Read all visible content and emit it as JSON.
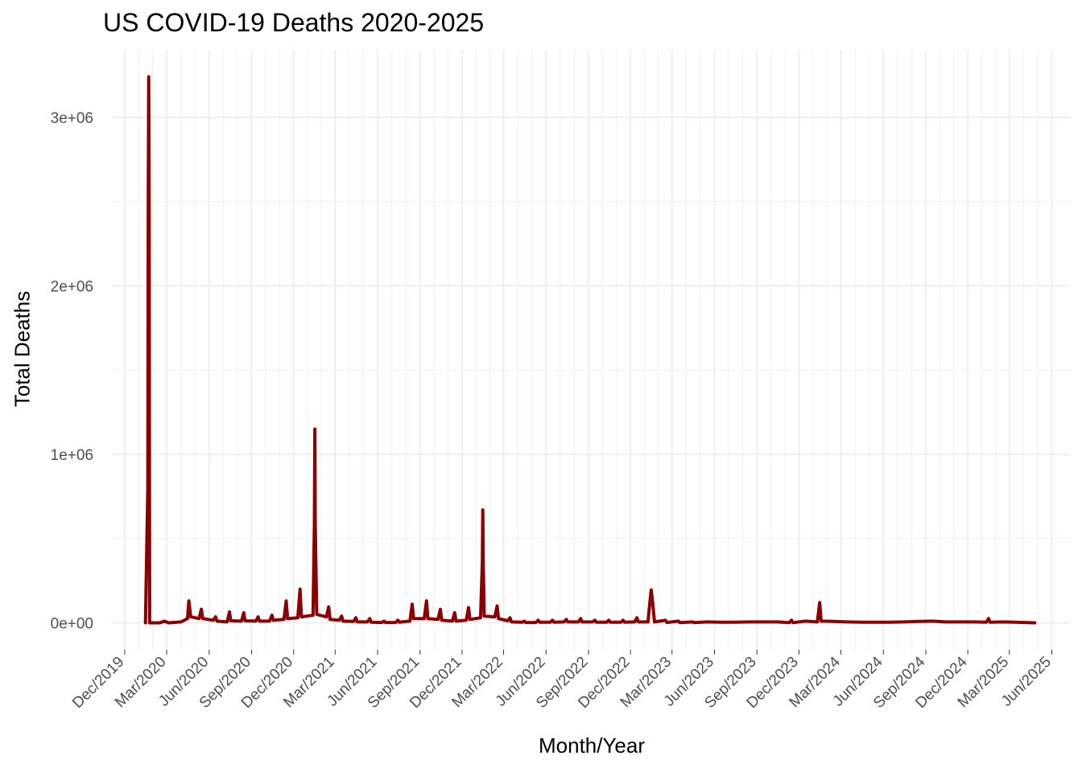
{
  "chart_data": {
    "type": "line",
    "title": "US COVID-19 Deaths 2020-2025",
    "xlabel": "Month/Year",
    "ylabel": "Total Deaths",
    "color": "#8b0000",
    "grid": true,
    "legend": "none",
    "x_range": [
      "2019-11-05",
      "2025-07-12"
    ],
    "ylim": [
      -160000,
      3400000
    ],
    "y_ticks": [
      {
        "value": 0,
        "label": "0e+00"
      },
      {
        "value": 1000000,
        "label": "1e+06"
      },
      {
        "value": 2000000,
        "label": "2e+06"
      },
      {
        "value": 3000000,
        "label": "3e+06"
      }
    ],
    "x_ticks": [
      {
        "date": "2019-12-01",
        "label": "Dec/2019"
      },
      {
        "date": "2020-03-01",
        "label": "Mar/2020"
      },
      {
        "date": "2020-06-01",
        "label": "Jun/2020"
      },
      {
        "date": "2020-09-01",
        "label": "Sep/2020"
      },
      {
        "date": "2020-12-01",
        "label": "Dec/2020"
      },
      {
        "date": "2021-03-01",
        "label": "Mar/2021"
      },
      {
        "date": "2021-06-01",
        "label": "Jun/2021"
      },
      {
        "date": "2021-09-01",
        "label": "Sep/2021"
      },
      {
        "date": "2021-12-01",
        "label": "Dec/2021"
      },
      {
        "date": "2022-03-01",
        "label": "Mar/2022"
      },
      {
        "date": "2022-06-01",
        "label": "Jun/2022"
      },
      {
        "date": "2022-09-01",
        "label": "Sep/2022"
      },
      {
        "date": "2022-12-01",
        "label": "Dec/2022"
      },
      {
        "date": "2023-03-01",
        "label": "Mar/2023"
      },
      {
        "date": "2023-06-01",
        "label": "Jun/2023"
      },
      {
        "date": "2023-09-01",
        "label": "Sep/2023"
      },
      {
        "date": "2023-12-01",
        "label": "Dec/2023"
      },
      {
        "date": "2024-03-01",
        "label": "Mar/2024"
      },
      {
        "date": "2024-06-01",
        "label": "Jun/2024"
      },
      {
        "date": "2024-09-01",
        "label": "Sep/2024"
      },
      {
        "date": "2024-12-01",
        "label": "Dec/2024"
      },
      {
        "date": "2025-03-01",
        "label": "Mar/2025"
      },
      {
        "date": "2025-06-01",
        "label": "Jun/2025"
      }
    ],
    "series": [
      {
        "points": [
          [
            "2020-01-15",
            0
          ],
          [
            "2020-01-20",
            800000
          ],
          [
            "2020-01-21",
            2420000
          ],
          [
            "2020-01-22",
            3240000
          ],
          [
            "2020-01-23",
            2420000
          ],
          [
            "2020-01-24",
            0
          ],
          [
            "2020-02-15",
            0
          ],
          [
            "2020-02-25",
            10000
          ],
          [
            "2020-03-05",
            0
          ],
          [
            "2020-04-01",
            5000
          ],
          [
            "2020-04-15",
            25000
          ],
          [
            "2020-04-18",
            130000
          ],
          [
            "2020-04-22",
            35000
          ],
          [
            "2020-05-10",
            25000
          ],
          [
            "2020-05-15",
            80000
          ],
          [
            "2020-05-18",
            25000
          ],
          [
            "2020-06-10",
            15000
          ],
          [
            "2020-06-15",
            35000
          ],
          [
            "2020-06-18",
            10000
          ],
          [
            "2020-07-10",
            5000
          ],
          [
            "2020-07-15",
            65000
          ],
          [
            "2020-07-18",
            12000
          ],
          [
            "2020-08-10",
            10000
          ],
          [
            "2020-08-15",
            60000
          ],
          [
            "2020-08-18",
            12000
          ],
          [
            "2020-09-10",
            10000
          ],
          [
            "2020-09-15",
            35000
          ],
          [
            "2020-09-18",
            10000
          ],
          [
            "2020-10-10",
            10000
          ],
          [
            "2020-10-15",
            45000
          ],
          [
            "2020-10-18",
            15000
          ],
          [
            "2020-11-10",
            20000
          ],
          [
            "2020-11-15",
            130000
          ],
          [
            "2020-11-18",
            25000
          ],
          [
            "2020-12-10",
            30000
          ],
          [
            "2020-12-15",
            200000
          ],
          [
            "2020-12-18",
            35000
          ],
          [
            "2021-01-12",
            45000
          ],
          [
            "2021-01-15",
            580000
          ],
          [
            "2021-01-16",
            1150000
          ],
          [
            "2021-01-17",
            580000
          ],
          [
            "2021-01-20",
            50000
          ],
          [
            "2021-02-10",
            35000
          ],
          [
            "2021-02-15",
            95000
          ],
          [
            "2021-02-18",
            20000
          ],
          [
            "2021-03-10",
            15000
          ],
          [
            "2021-03-15",
            40000
          ],
          [
            "2021-03-18",
            10000
          ],
          [
            "2021-04-10",
            8000
          ],
          [
            "2021-04-15",
            30000
          ],
          [
            "2021-04-18",
            5000
          ],
          [
            "2021-05-10",
            5000
          ],
          [
            "2021-05-15",
            25000
          ],
          [
            "2021-05-18",
            3000
          ],
          [
            "2021-06-10",
            2000
          ],
          [
            "2021-06-15",
            10000
          ],
          [
            "2021-06-18",
            2000
          ],
          [
            "2021-07-10",
            2000
          ],
          [
            "2021-07-15",
            15000
          ],
          [
            "2021-07-18",
            3000
          ],
          [
            "2021-08-10",
            10000
          ],
          [
            "2021-08-15",
            110000
          ],
          [
            "2021-08-18",
            25000
          ],
          [
            "2021-09-10",
            25000
          ],
          [
            "2021-09-15",
            130000
          ],
          [
            "2021-09-18",
            25000
          ],
          [
            "2021-10-10",
            20000
          ],
          [
            "2021-10-15",
            80000
          ],
          [
            "2021-10-18",
            15000
          ],
          [
            "2021-11-10",
            10000
          ],
          [
            "2021-11-15",
            60000
          ],
          [
            "2021-11-18",
            10000
          ],
          [
            "2021-12-10",
            15000
          ],
          [
            "2021-12-15",
            90000
          ],
          [
            "2021-12-18",
            20000
          ],
          [
            "2022-01-10",
            30000
          ],
          [
            "2022-01-14",
            350000
          ],
          [
            "2022-01-15",
            670000
          ],
          [
            "2022-01-16",
            350000
          ],
          [
            "2022-01-18",
            40000
          ],
          [
            "2022-02-10",
            35000
          ],
          [
            "2022-02-15",
            100000
          ],
          [
            "2022-02-18",
            25000
          ],
          [
            "2022-03-10",
            12000
          ],
          [
            "2022-03-15",
            30000
          ],
          [
            "2022-03-18",
            5000
          ],
          [
            "2022-04-10",
            3000
          ],
          [
            "2022-04-15",
            10000
          ],
          [
            "2022-04-18",
            2000
          ],
          [
            "2022-05-10",
            2000
          ],
          [
            "2022-05-15",
            15000
          ],
          [
            "2022-05-18",
            3000
          ],
          [
            "2022-06-10",
            3000
          ],
          [
            "2022-06-15",
            15000
          ],
          [
            "2022-06-18",
            3000
          ],
          [
            "2022-07-10",
            5000
          ],
          [
            "2022-07-15",
            20000
          ],
          [
            "2022-07-18",
            5000
          ],
          [
            "2022-08-10",
            5000
          ],
          [
            "2022-08-15",
            25000
          ],
          [
            "2022-08-18",
            5000
          ],
          [
            "2022-09-10",
            5000
          ],
          [
            "2022-09-15",
            15000
          ],
          [
            "2022-09-18",
            3000
          ],
          [
            "2022-10-10",
            3000
          ],
          [
            "2022-10-15",
            15000
          ],
          [
            "2022-10-18",
            3000
          ],
          [
            "2022-11-10",
            3000
          ],
          [
            "2022-11-15",
            15000
          ],
          [
            "2022-11-18",
            3000
          ],
          [
            "2022-12-10",
            5000
          ],
          [
            "2022-12-15",
            30000
          ],
          [
            "2022-12-18",
            5000
          ],
          [
            "2023-01-08",
            5000
          ],
          [
            "2023-01-12",
            120000
          ],
          [
            "2023-01-15",
            195000
          ],
          [
            "2023-01-18",
            120000
          ],
          [
            "2023-01-22",
            5000
          ],
          [
            "2023-02-15",
            15000
          ],
          [
            "2023-02-18",
            2000
          ],
          [
            "2023-03-15",
            10000
          ],
          [
            "2023-03-18",
            1000
          ],
          [
            "2023-04-15",
            5000
          ],
          [
            "2023-04-18",
            1000
          ],
          [
            "2023-05-15",
            5000
          ],
          [
            "2023-06-15",
            3000
          ],
          [
            "2023-07-15",
            3000
          ],
          [
            "2023-08-15",
            5000
          ],
          [
            "2023-09-15",
            5000
          ],
          [
            "2023-10-15",
            5000
          ],
          [
            "2023-11-10",
            1000
          ],
          [
            "2023-11-15",
            15000
          ],
          [
            "2023-11-18",
            1000
          ],
          [
            "2023-12-15",
            10000
          ],
          [
            "2024-01-10",
            5000
          ],
          [
            "2024-01-15",
            120000
          ],
          [
            "2024-01-18",
            10000
          ],
          [
            "2024-02-15",
            8000
          ],
          [
            "2024-03-15",
            5000
          ],
          [
            "2024-04-15",
            3000
          ],
          [
            "2024-05-15",
            3000
          ],
          [
            "2024-06-15",
            3000
          ],
          [
            "2024-07-15",
            5000
          ],
          [
            "2024-08-15",
            8000
          ],
          [
            "2024-09-15",
            10000
          ],
          [
            "2024-10-15",
            5000
          ],
          [
            "2024-11-15",
            5000
          ],
          [
            "2024-12-15",
            5000
          ],
          [
            "2025-01-10",
            3000
          ],
          [
            "2025-01-15",
            25000
          ],
          [
            "2025-01-18",
            3000
          ],
          [
            "2025-02-15",
            5000
          ],
          [
            "2025-03-15",
            3000
          ],
          [
            "2025-04-25",
            0
          ]
        ]
      }
    ]
  }
}
